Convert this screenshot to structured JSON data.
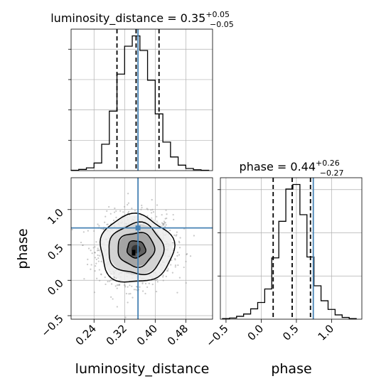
{
  "chart_data": [
    {
      "type": "histogram",
      "panel": "luminosity_distance marginal",
      "title": {
        "prefix": "luminosity_distance = 0.35",
        "plus": "+0.05",
        "minus": "−0.05"
      },
      "x_range": [
        0.18,
        0.55
      ],
      "x_ticks": [
        0.24,
        0.32,
        0.4,
        0.48
      ],
      "grid": true,
      "bin_edges": [
        0.18,
        0.2,
        0.22,
        0.24,
        0.26,
        0.28,
        0.3,
        0.32,
        0.34,
        0.36,
        0.38,
        0.4,
        0.42,
        0.44,
        0.46,
        0.48,
        0.5,
        0.52,
        0.54
      ],
      "counts": [
        1,
        4,
        9,
        25,
        87,
        196,
        318,
        410,
        444,
        396,
        298,
        187,
        94,
        45,
        18,
        7,
        3,
        1
      ],
      "quantile_lines": [
        0.3,
        0.35,
        0.41
      ],
      "truth": 0.355
    },
    {
      "type": "histogram",
      "panel": "phase marginal",
      "title": {
        "prefix": "phase = 0.44",
        "plus": "+0.26",
        "minus": "−0.27"
      },
      "x_range": [
        -0.58,
        1.43
      ],
      "x_ticks": [
        -0.5,
        0.0,
        0.5,
        1.0
      ],
      "x_tick_labels": [
        "−0.5",
        "0.0",
        "0.5",
        "1.0"
      ],
      "grid": true,
      "bin_edges": [
        -0.55,
        -0.45,
        -0.35,
        -0.25,
        -0.15,
        -0.05,
        0.05,
        0.15,
        0.25,
        0.35,
        0.45,
        0.55,
        0.65,
        0.75,
        0.85,
        0.95,
        1.05,
        1.15,
        1.25,
        1.35
      ],
      "counts": [
        2,
        4,
        10,
        18,
        36,
        58,
        105,
        213,
        340,
        452,
        468,
        363,
        216,
        116,
        64,
        34,
        15,
        6,
        2
      ],
      "quantile_lines": [
        0.17,
        0.44,
        0.7
      ],
      "truth": 0.74
    },
    {
      "type": "scatter",
      "panel": "joint density",
      "x_range": [
        0.18,
        0.55
      ],
      "y_range": [
        -0.55,
        1.45
      ],
      "x_ticks": [
        0.24,
        0.32,
        0.4,
        0.48
      ],
      "y_ticks": [
        -0.5,
        0.0,
        0.5,
        1.0
      ],
      "y_tick_labels": [
        "−0.5",
        "0.0",
        "0.5",
        "1.0"
      ],
      "xlabel": "luminosity_distance",
      "ylabel": "phase",
      "grid": true,
      "center": [
        0.35,
        0.44
      ],
      "spread": [
        0.048,
        0.24
      ],
      "contour_levels_sigma": [
        0.5,
        1.0,
        1.5,
        2.0
      ],
      "truth": [
        0.355,
        0.74
      ],
      "bottom_xlabel_right": "phase"
    }
  ],
  "colors": {
    "hist": "#000000",
    "truth": "#4682b4",
    "grid": "#b0b0b0",
    "points": "#9a9a9a",
    "density": "#3a3a3a"
  }
}
